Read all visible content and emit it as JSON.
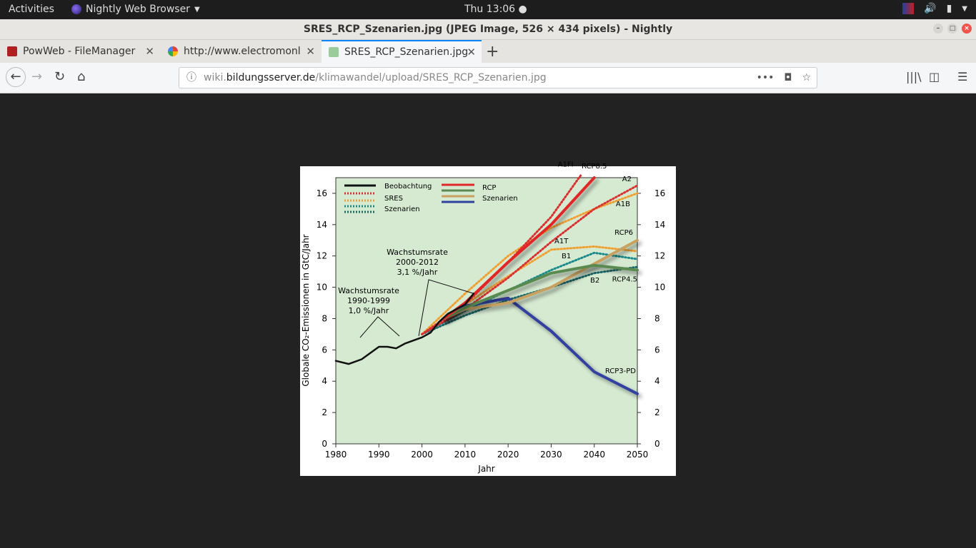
{
  "topbar": {
    "activities": "Activities",
    "app_name": "Nightly Web Browser",
    "clock": "Thu 13:06"
  },
  "window": {
    "title": "SRES_RCP_Szenarien.jpg (JPEG Image, 526 × 434 pixels) - Nightly"
  },
  "tabs": [
    {
      "label": "PowWeb - FileManager"
    },
    {
      "label": "http://www.electromonl"
    },
    {
      "label": "SRES_RCP_Szenarien.jpg"
    }
  ],
  "urlbar": {
    "domain_pre": "wiki.",
    "domain": "bildungsserver.de",
    "path": "/klimawandel/upload/SRES_RCP_Szenarien.jpg"
  },
  "chart_data": {
    "type": "line",
    "xlabel": "Jahr",
    "ylabel": "Globale CO₂-Emissionen in GtC/Jahr",
    "xlim": [
      1980,
      2050
    ],
    "ylim": [
      0,
      17
    ],
    "x_ticks": [
      "1980",
      "1990",
      "2000",
      "2010",
      "2020",
      "2030",
      "2040",
      "2050"
    ],
    "y_ticks": [
      "0",
      "2",
      "4",
      "6",
      "8",
      "10",
      "12",
      "14",
      "16"
    ],
    "background": "#d6ead2",
    "legend": {
      "observation": "Beobachtung",
      "sres_line1": "SRES",
      "sres_line2": "Szenarien",
      "rcp_line1": "RCP",
      "rcp_line2": "Szenarien"
    },
    "annotations": {
      "growth1_l1": "Wachstumsrate",
      "growth1_l2": "1990-1999",
      "growth1_l3": "1,0 %/Jahr",
      "growth2_l1": "Wachstumsrate",
      "growth2_l2": "2000-2012",
      "growth2_l3": "3,1 %/Jahr"
    },
    "series": [
      {
        "name": "Beobachtung",
        "color": "#111111",
        "style": "solid",
        "x": [
          1980,
          1983,
          1986,
          1990,
          1992,
          1994,
          1996,
          1998,
          2000,
          2002,
          2004,
          2006,
          2008,
          2010,
          2012
        ],
        "y": [
          5.3,
          5.1,
          5.4,
          6.2,
          6.2,
          6.1,
          6.4,
          6.6,
          6.8,
          7.1,
          7.8,
          8.3,
          8.6,
          8.9,
          9.6
        ]
      },
      {
        "name": "A1FI",
        "color": "#d93030",
        "style": "dotted",
        "x": [
          2000,
          2010,
          2020,
          2030,
          2037
        ],
        "y": [
          7.0,
          8.9,
          11.6,
          14.5,
          17.2
        ]
      },
      {
        "name": "A2",
        "color": "#d93030",
        "style": "dotted",
        "x": [
          2000,
          2010,
          2020,
          2030,
          2040,
          2050
        ],
        "y": [
          7.0,
          8.6,
          10.6,
          12.9,
          15.0,
          16.5
        ]
      },
      {
        "name": "A1B",
        "color": "#f0a030",
        "style": "dotted",
        "x": [
          2000,
          2010,
          2020,
          2030,
          2040,
          2050
        ],
        "y": [
          7.0,
          9.6,
          12.0,
          13.8,
          15.0,
          16.0
        ]
      },
      {
        "name": "A1T",
        "color": "#f0a030",
        "style": "dotted",
        "x": [
          2000,
          2010,
          2020,
          2030,
          2040,
          2050
        ],
        "y": [
          7.0,
          8.9,
          10.7,
          12.4,
          12.6,
          12.3
        ]
      },
      {
        "name": "B1",
        "color": "#1a8a8a",
        "style": "dotted",
        "x": [
          2000,
          2010,
          2020,
          2030,
          2040,
          2050
        ],
        "y": [
          7.0,
          8.5,
          9.8,
          11.1,
          12.2,
          11.8
        ]
      },
      {
        "name": "B2",
        "color": "#1a6a6a",
        "style": "dotted",
        "x": [
          2000,
          2010,
          2020,
          2030,
          2040,
          2050
        ],
        "y": [
          7.0,
          8.2,
          9.2,
          10.0,
          10.9,
          11.3
        ]
      },
      {
        "name": "RCP8.5",
        "color": "#e02828",
        "style": "solid",
        "x": [
          2005,
          2010,
          2020,
          2030,
          2040
        ],
        "y": [
          8.0,
          9.0,
          11.6,
          14.0,
          17.0
        ]
      },
      {
        "name": "RCP6",
        "color": "#c8a060",
        "style": "solid",
        "x": [
          2005,
          2010,
          2020,
          2030,
          2040,
          2050
        ],
        "y": [
          8.0,
          8.6,
          9.0,
          10.0,
          11.5,
          13.0
        ]
      },
      {
        "name": "RCP4.5",
        "color": "#5a8a50",
        "style": "solid",
        "x": [
          2005,
          2010,
          2020,
          2030,
          2040,
          2050
        ],
        "y": [
          8.0,
          8.7,
          9.8,
          10.9,
          11.4,
          11.1
        ]
      },
      {
        "name": "RCP3-PD",
        "color": "#3040a0",
        "style": "solid",
        "x": [
          2005,
          2010,
          2020,
          2030,
          2040,
          2050
        ],
        "y": [
          8.0,
          8.8,
          9.3,
          7.2,
          4.6,
          3.2
        ]
      }
    ],
    "series_labels": [
      {
        "name": "A1FI",
        "text": "A1FI"
      },
      {
        "name": "RCP8.5",
        "text": "RCP8.5"
      },
      {
        "name": "A2",
        "text": "A2"
      },
      {
        "name": "A1B",
        "text": "A1B"
      },
      {
        "name": "RCP6",
        "text": "RCP6"
      },
      {
        "name": "A1T",
        "text": "A1T"
      },
      {
        "name": "B1",
        "text": "B1"
      },
      {
        "name": "B2",
        "text": "B2"
      },
      {
        "name": "RCP4.5",
        "text": "RCP4.5"
      },
      {
        "name": "RCP3-PD",
        "text": "RCP3-PD"
      }
    ]
  }
}
